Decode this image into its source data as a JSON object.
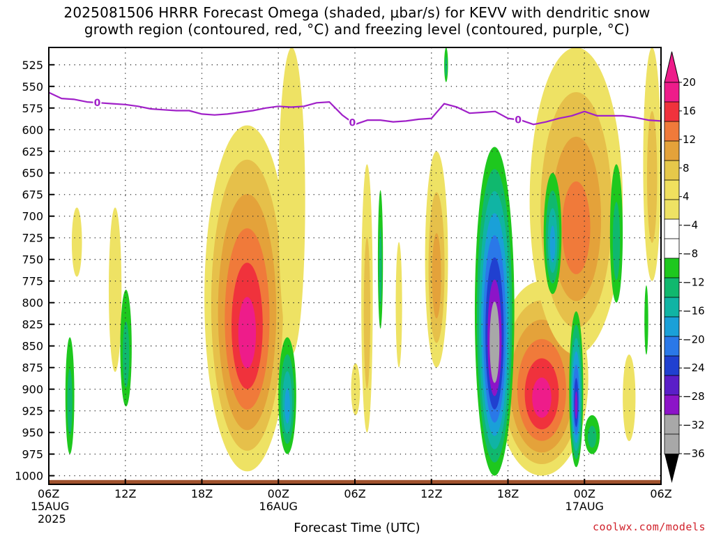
{
  "title": {
    "line1": "2025081506 HRRR Forecast Omega (shaded, μbar/s) for KEVV with dendritic snow",
    "line2": "growth region (contoured, red, °C) and freezing level (contoured, purple, °C)"
  },
  "credit": "coolwx.com/models",
  "chart_data": {
    "type": "heatmap",
    "xlabel": "Forecast Time (UTC)",
    "ylim": [
      1010,
      505
    ],
    "xlim": [
      0,
      48
    ],
    "x_ticks": [
      {
        "h": 0,
        "label": "06Z",
        "sub1": "15AUG",
        "sub2": "2025"
      },
      {
        "h": 6,
        "label": "12Z",
        "sub1": "",
        "sub2": ""
      },
      {
        "h": 12,
        "label": "18Z",
        "sub1": "",
        "sub2": ""
      },
      {
        "h": 18,
        "label": "00Z",
        "sub1": "16AUG",
        "sub2": ""
      },
      {
        "h": 24,
        "label": "06Z",
        "sub1": "",
        "sub2": ""
      },
      {
        "h": 30,
        "label": "12Z",
        "sub1": "",
        "sub2": ""
      },
      {
        "h": 36,
        "label": "18Z",
        "sub1": "",
        "sub2": ""
      },
      {
        "h": 42,
        "label": "00Z",
        "sub1": "17AUG",
        "sub2": ""
      },
      {
        "h": 48,
        "label": "06Z",
        "sub1": "",
        "sub2": ""
      }
    ],
    "y_ticks": [
      525,
      550,
      575,
      600,
      625,
      650,
      675,
      700,
      725,
      750,
      775,
      800,
      825,
      850,
      875,
      900,
      925,
      950,
      975,
      1000
    ],
    "grid": true,
    "colorbar": {
      "levels": [
        {
          "label": "20",
          "color": "#ee1c8a"
        },
        {
          "label": "",
          "color": "#f0323c"
        },
        {
          "label": "16",
          "color": "#f07a3a"
        },
        {
          "label": "",
          "color": "#e4a23a"
        },
        {
          "label": "12",
          "color": "#e6c84a"
        },
        {
          "label": "",
          "color": "#f0e05e"
        },
        {
          "label": "8",
          "color": "#eee264"
        },
        {
          "label": "",
          "color": "#ffffff"
        },
        {
          "label": "4",
          "color": "#ffffff"
        },
        {
          "label": "",
          "color": "#1ec81e"
        },
        {
          "label": "−4",
          "color": "#10b86e"
        },
        {
          "label": "",
          "color": "#10b4a4"
        },
        {
          "label": "−8",
          "color": "#1aa0d8"
        },
        {
          "label": "",
          "color": "#2a78e8"
        },
        {
          "label": "−12",
          "color": "#2040d0"
        },
        {
          "label": "",
          "color": "#5a1ec8"
        },
        {
          "label": "−16",
          "color": "#8c14c8"
        },
        {
          "label": "",
          "color": "#a8a8a8"
        },
        {
          "label": "−20",
          "color": "#a8a8a8"
        }
      ],
      "labels": [
        "20",
        "16",
        "12",
        "8",
        "4",
        "−4",
        "−8",
        "−12",
        "−16",
        "−20",
        "−24",
        "−28",
        "−32",
        "−36"
      ],
      "top_color": "#ee1c8a",
      "bottom_color": "#000000"
    },
    "freezing_level": {
      "name": "0",
      "color": "#a020c8",
      "x": [
        0,
        1,
        2,
        3,
        4,
        5,
        6,
        7,
        8,
        9,
        10,
        11,
        12,
        13,
        14,
        15,
        16,
        17,
        18,
        19,
        20,
        21,
        22,
        23,
        24,
        25,
        26,
        27,
        28,
        29,
        30,
        31,
        32,
        33,
        34,
        35,
        36,
        37,
        38,
        39,
        40,
        41,
        42,
        43,
        44,
        45,
        46,
        47,
        48
      ],
      "y": [
        557,
        564,
        565,
        568,
        569,
        570,
        571,
        573,
        576,
        577,
        578,
        578,
        582,
        583,
        582,
        580,
        578,
        575,
        573,
        574,
        573,
        569,
        568,
        583,
        594,
        589,
        589,
        591,
        590,
        588,
        587,
        570,
        574,
        581,
        580,
        579,
        587,
        589,
        594,
        591,
        587,
        584,
        579,
        584,
        584,
        584,
        586,
        589,
        590
      ],
      "labels_at_x": [
        3.8,
        23.8,
        36.8
      ]
    },
    "omega_regions": [
      {
        "sign": "+",
        "x": [
          1.8,
          2.6
        ],
        "p": [
          690,
          770
        ],
        "peak": 4
      },
      {
        "sign": "+",
        "x": [
          4.7,
          5.7
        ],
        "p": [
          690,
          880
        ],
        "peak": 4
      },
      {
        "sign": "+",
        "x": [
          12.2,
          18.9
        ],
        "p": [
          595,
          995
        ],
        "peak": 24
      },
      {
        "sign": "+",
        "x": [
          18.0,
          20.1
        ],
        "p": [
          505,
          860
        ],
        "peak": 4
      },
      {
        "sign": "+",
        "x": [
          23.7,
          24.4
        ],
        "p": [
          870,
          930
        ],
        "peak": 4
      },
      {
        "sign": "+",
        "x": [
          24.5,
          25.4
        ],
        "p": [
          640,
          950
        ],
        "peak": 8
      },
      {
        "sign": "+",
        "x": [
          27.2,
          27.7
        ],
        "p": [
          730,
          875
        ],
        "peak": 4
      },
      {
        "sign": "+",
        "x": [
          29.5,
          31.3
        ],
        "p": [
          625,
          875
        ],
        "peak": 12
      },
      {
        "sign": "+",
        "x": [
          35.0,
          42.3
        ],
        "p": [
          775,
          1000
        ],
        "peak": 24
      },
      {
        "sign": "+",
        "x": [
          37.7,
          45.0
        ],
        "p": [
          505,
          860
        ],
        "peak": 16
      },
      {
        "sign": "+",
        "x": [
          46.6,
          48.0
        ],
        "p": [
          505,
          775
        ],
        "peak": 8
      },
      {
        "sign": "+",
        "x": [
          45.0,
          46.0
        ],
        "p": [
          860,
          960
        ],
        "peak": 4
      },
      {
        "sign": "-",
        "x": [
          1.3,
          2.0
        ],
        "p": [
          840,
          975
        ],
        "peak": -8
      },
      {
        "sign": "-",
        "x": [
          5.6,
          6.5
        ],
        "p": [
          785,
          920
        ],
        "peak": -8
      },
      {
        "sign": "-",
        "x": [
          18.0,
          19.4
        ],
        "p": [
          840,
          975
        ],
        "peak": -16
      },
      {
        "sign": "-",
        "x": [
          25.8,
          26.2
        ],
        "p": [
          670,
          830
        ],
        "peak": -8
      },
      {
        "sign": "-",
        "x": [
          31.0,
          31.3
        ],
        "p": [
          505,
          545
        ],
        "peak": -8
      },
      {
        "sign": "-",
        "x": [
          33.4,
          36.5
        ],
        "p": [
          620,
          1000
        ],
        "peak": -36
      },
      {
        "sign": "-",
        "x": [
          38.8,
          40.2
        ],
        "p": [
          650,
          790
        ],
        "peak": -16
      },
      {
        "sign": "-",
        "x": [
          40.8,
          41.9
        ],
        "p": [
          810,
          990
        ],
        "peak": -28
      },
      {
        "sign": "-",
        "x": [
          42.0,
          43.2
        ],
        "p": [
          930,
          975
        ],
        "peak": -8
      },
      {
        "sign": "-",
        "x": [
          44.0,
          45.0
        ],
        "p": [
          640,
          800
        ],
        "peak": -8
      },
      {
        "sign": "-",
        "x": [
          46.7,
          47.0
        ],
        "p": [
          780,
          860
        ],
        "peak": -4
      }
    ],
    "ground": {
      "p_top": 1005,
      "color": "#a0522d"
    }
  }
}
